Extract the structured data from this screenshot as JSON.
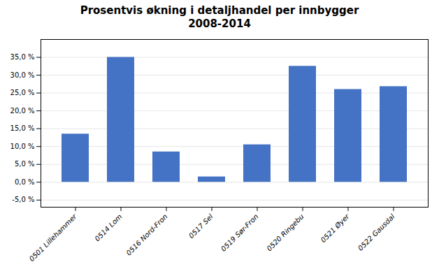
{
  "chart_data": {
    "type": "bar",
    "title": "Prosentvis økning i detaljhandel per innbygger\n2008-2014",
    "categories": [
      "0501 Lillehammer",
      "0514 Lom",
      "0516 Nord-Fron",
      "0517 Sel",
      "0519 Sør-Fron",
      "0520 Ringebu",
      "0521 Øyer",
      "0522 Gausdal"
    ],
    "values": [
      0.135,
      0.35,
      0.085,
      0.015,
      0.105,
      0.325,
      0.26,
      0.268
    ],
    "color": "#4472C4",
    "ylim": [
      -0.07,
      0.4
    ],
    "yticks": [
      {
        "value": -0.05,
        "label": "-5,0 %"
      },
      {
        "value": 0.0,
        "label": "0,0 %"
      },
      {
        "value": 0.05,
        "label": "5,0 %"
      },
      {
        "value": 0.1,
        "label": "10,0 %"
      },
      {
        "value": 0.15,
        "label": "15,0 %"
      },
      {
        "value": 0.2,
        "label": "20,0 %"
      },
      {
        "value": 0.25,
        "label": "25,0 %"
      },
      {
        "value": 0.3,
        "label": "30,0 %"
      },
      {
        "value": 0.35,
        "label": "35,0 %"
      }
    ],
    "grid": true
  }
}
